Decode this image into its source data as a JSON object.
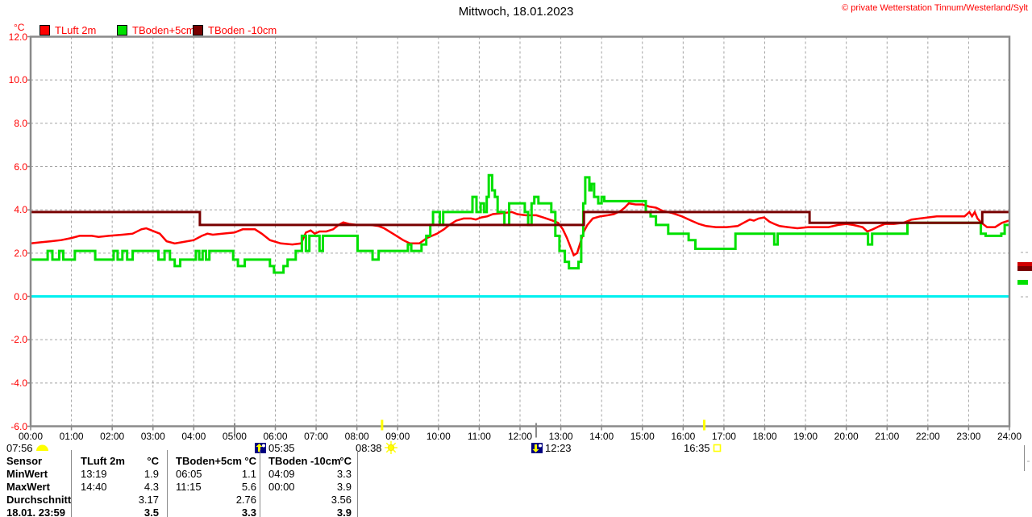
{
  "header": {
    "title": "Mittwoch, 18.01.2023",
    "copyright": "© private Wetterstation Tinnum/Westerland/Sylt"
  },
  "legend": {
    "unit": "°C",
    "items": [
      {
        "label": "TLuft 2m",
        "color": "#ff0000"
      },
      {
        "label": "TBoden+5cm",
        "color": "#00e000"
      },
      {
        "label": "TBoden -10cm",
        "color": "#780000"
      }
    ]
  },
  "chart_data": {
    "type": "line",
    "title": "Mittwoch, 18.01.2023",
    "xlabel": "",
    "ylabel": "°C",
    "ylim": [
      -6.0,
      12.0
    ],
    "ytick_step": 2.0,
    "x_minutes_range": [
      0,
      1440
    ],
    "grid": "dashed",
    "zero_line_color": "#00f0f0",
    "y_tick_labels": [
      "12.0",
      "10.0",
      "8.0",
      "6.0",
      "4.0",
      "2.0",
      "0.0",
      "-2.0",
      "-4.0",
      "-6.0"
    ],
    "x_tick_labels": [
      "00:00",
      "01:00",
      "02:00",
      "03:00",
      "04:00",
      "05:00",
      "06:00",
      "07:00",
      "08:00",
      "09:00",
      "10:00",
      "11:00",
      "12:00",
      "13:00",
      "14:00",
      "15:00",
      "16:00",
      "17:00",
      "18:00",
      "19:00",
      "20:00",
      "21:00",
      "22:00",
      "23:00",
      "24:00"
    ],
    "series": [
      {
        "name": "TLuft 2m",
        "color": "#ff0000",
        "width": 2.5,
        "mode": "linear",
        "points": [
          [
            0,
            2.45
          ],
          [
            15,
            2.5
          ],
          [
            30,
            2.55
          ],
          [
            45,
            2.6
          ],
          [
            60,
            2.7
          ],
          [
            72,
            2.8
          ],
          [
            90,
            2.8
          ],
          [
            100,
            2.75
          ],
          [
            115,
            2.8
          ],
          [
            135,
            2.85
          ],
          [
            150,
            2.9
          ],
          [
            163,
            3.1
          ],
          [
            170,
            3.15
          ],
          [
            178,
            3.05
          ],
          [
            190,
            2.9
          ],
          [
            200,
            2.55
          ],
          [
            212,
            2.45
          ],
          [
            222,
            2.5
          ],
          [
            240,
            2.6
          ],
          [
            252,
            2.8
          ],
          [
            260,
            2.9
          ],
          [
            268,
            2.85
          ],
          [
            282,
            2.9
          ],
          [
            300,
            2.95
          ],
          [
            312,
            3.1
          ],
          [
            330,
            3.1
          ],
          [
            340,
            2.9
          ],
          [
            352,
            2.6
          ],
          [
            368,
            2.45
          ],
          [
            385,
            2.4
          ],
          [
            398,
            2.45
          ],
          [
            405,
            2.95
          ],
          [
            412,
            3.05
          ],
          [
            418,
            2.9
          ],
          [
            425,
            3.0
          ],
          [
            435,
            3.0
          ],
          [
            445,
            3.1
          ],
          [
            453,
            3.3
          ],
          [
            460,
            3.42
          ],
          [
            468,
            3.35
          ],
          [
            480,
            3.3
          ],
          [
            500,
            3.3
          ],
          [
            512,
            3.25
          ],
          [
            520,
            3.15
          ],
          [
            533,
            2.9
          ],
          [
            548,
            2.6
          ],
          [
            558,
            2.45
          ],
          [
            572,
            2.45
          ],
          [
            583,
            2.7
          ],
          [
            598,
            2.9
          ],
          [
            608,
            3.1
          ],
          [
            616,
            3.3
          ],
          [
            626,
            3.5
          ],
          [
            637,
            3.6
          ],
          [
            648,
            3.6
          ],
          [
            655,
            3.55
          ],
          [
            663,
            3.65
          ],
          [
            672,
            3.7
          ],
          [
            680,
            3.8
          ],
          [
            694,
            3.85
          ],
          [
            708,
            3.9
          ],
          [
            716,
            3.8
          ],
          [
            728,
            3.75
          ],
          [
            744,
            3.75
          ],
          [
            754,
            3.65
          ],
          [
            768,
            3.5
          ],
          [
            776,
            3.4
          ],
          [
            783,
            3.1
          ],
          [
            789,
            2.7
          ],
          [
            794,
            2.3
          ],
          [
            799,
            1.9
          ],
          [
            804,
            2.0
          ],
          [
            809,
            2.5
          ],
          [
            814,
            3.0
          ],
          [
            819,
            3.3
          ],
          [
            827,
            3.6
          ],
          [
            838,
            3.7
          ],
          [
            849,
            3.75
          ],
          [
            858,
            3.8
          ],
          [
            868,
            3.95
          ],
          [
            874,
            4.1
          ],
          [
            880,
            4.3
          ],
          [
            890,
            4.25
          ],
          [
            900,
            4.25
          ],
          [
            910,
            4.15
          ],
          [
            920,
            4.1
          ],
          [
            930,
            3.95
          ],
          [
            944,
            3.85
          ],
          [
            958,
            3.7
          ],
          [
            972,
            3.5
          ],
          [
            983,
            3.35
          ],
          [
            994,
            3.25
          ],
          [
            1008,
            3.2
          ],
          [
            1024,
            3.2
          ],
          [
            1040,
            3.25
          ],
          [
            1052,
            3.45
          ],
          [
            1058,
            3.55
          ],
          [
            1064,
            3.5
          ],
          [
            1071,
            3.6
          ],
          [
            1079,
            3.65
          ],
          [
            1087,
            3.45
          ],
          [
            1094,
            3.35
          ],
          [
            1102,
            3.25
          ],
          [
            1114,
            3.2
          ],
          [
            1128,
            3.15
          ],
          [
            1144,
            3.2
          ],
          [
            1160,
            3.2
          ],
          [
            1174,
            3.2
          ],
          [
            1188,
            3.3
          ],
          [
            1200,
            3.35
          ],
          [
            1210,
            3.3
          ],
          [
            1224,
            3.2
          ],
          [
            1231,
            3.0
          ],
          [
            1239,
            3.1
          ],
          [
            1249,
            3.25
          ],
          [
            1257,
            3.35
          ],
          [
            1270,
            3.35
          ],
          [
            1284,
            3.4
          ],
          [
            1296,
            3.55
          ],
          [
            1308,
            3.6
          ],
          [
            1320,
            3.65
          ],
          [
            1333,
            3.7
          ],
          [
            1348,
            3.7
          ],
          [
            1362,
            3.7
          ],
          [
            1374,
            3.7
          ],
          [
            1381,
            3.9
          ],
          [
            1385,
            3.7
          ],
          [
            1389,
            3.9
          ],
          [
            1393,
            3.6
          ],
          [
            1399,
            3.4
          ],
          [
            1407,
            3.2
          ],
          [
            1419,
            3.2
          ],
          [
            1429,
            3.4
          ],
          [
            1439,
            3.5
          ]
        ]
      },
      {
        "name": "TBoden+5cm",
        "color": "#00e000",
        "width": 3,
        "mode": "step",
        "points": [
          [
            0,
            1.7
          ],
          [
            25,
            2.1
          ],
          [
            32,
            1.7
          ],
          [
            42,
            2.1
          ],
          [
            48,
            1.7
          ],
          [
            65,
            2.1
          ],
          [
            95,
            1.7
          ],
          [
            122,
            2.1
          ],
          [
            128,
            1.7
          ],
          [
            135,
            2.1
          ],
          [
            142,
            1.7
          ],
          [
            150,
            2.1
          ],
          [
            188,
            1.7
          ],
          [
            197,
            2.1
          ],
          [
            205,
            1.7
          ],
          [
            212,
            1.4
          ],
          [
            220,
            1.7
          ],
          [
            243,
            2.1
          ],
          [
            248,
            1.7
          ],
          [
            253,
            2.1
          ],
          [
            258,
            1.7
          ],
          [
            263,
            2.1
          ],
          [
            298,
            1.7
          ],
          [
            305,
            1.4
          ],
          [
            315,
            1.7
          ],
          [
            352,
            1.4
          ],
          [
            358,
            1.1
          ],
          [
            372,
            1.4
          ],
          [
            378,
            1.7
          ],
          [
            390,
            2.1
          ],
          [
            399,
            2.8
          ],
          [
            405,
            2.1
          ],
          [
            410,
            2.8
          ],
          [
            425,
            2.1
          ],
          [
            430,
            2.8
          ],
          [
            481,
            2.1
          ],
          [
            503,
            1.7
          ],
          [
            512,
            2.1
          ],
          [
            555,
            2.4
          ],
          [
            560,
            2.1
          ],
          [
            575,
            2.4
          ],
          [
            582,
            2.8
          ],
          [
            588,
            3.3
          ],
          [
            592,
            3.9
          ],
          [
            602,
            3.3
          ],
          [
            607,
            3.9
          ],
          [
            650,
            4.6
          ],
          [
            656,
            3.9
          ],
          [
            662,
            4.3
          ],
          [
            667,
            3.9
          ],
          [
            671,
            4.6
          ],
          [
            674,
            5.6
          ],
          [
            679,
            4.9
          ],
          [
            683,
            4.6
          ],
          [
            687,
            3.9
          ],
          [
            697,
            3.3
          ],
          [
            704,
            4.3
          ],
          [
            727,
            3.9
          ],
          [
            732,
            3.3
          ],
          [
            737,
            4.3
          ],
          [
            741,
            4.6
          ],
          [
            747,
            4.3
          ],
          [
            766,
            3.9
          ],
          [
            772,
            2.8
          ],
          [
            778,
            2.1
          ],
          [
            786,
            1.6
          ],
          [
            792,
            1.3
          ],
          [
            806,
            1.6
          ],
          [
            810,
            2.8
          ],
          [
            813,
            4.3
          ],
          [
            816,
            5.5
          ],
          [
            822,
            4.9
          ],
          [
            825,
            5.2
          ],
          [
            829,
            4.6
          ],
          [
            835,
            4.3
          ],
          [
            840,
            4.6
          ],
          [
            844,
            4.4
          ],
          [
            905,
            3.9
          ],
          [
            912,
            3.7
          ],
          [
            920,
            3.3
          ],
          [
            938,
            2.9
          ],
          [
            968,
            2.6
          ],
          [
            978,
            2.2
          ],
          [
            1037,
            2.9
          ],
          [
            1094,
            2.4
          ],
          [
            1099,
            2.9
          ],
          [
            1232,
            2.4
          ],
          [
            1238,
            2.9
          ],
          [
            1290,
            3.4
          ],
          [
            1398,
            2.9
          ],
          [
            1405,
            2.8
          ],
          [
            1428,
            2.9
          ],
          [
            1433,
            3.3
          ],
          [
            1439,
            3.3
          ]
        ]
      },
      {
        "name": "TBoden -10cm",
        "color": "#780000",
        "width": 3,
        "mode": "step",
        "points": [
          [
            0,
            3.9
          ],
          [
            249,
            3.3
          ],
          [
            814,
            3.9
          ],
          [
            1146,
            3.4
          ],
          [
            1400,
            3.9
          ],
          [
            1439,
            3.9
          ]
        ]
      }
    ]
  },
  "astro_markers": {
    "dawn_time": "07:56",
    "moon_up_time": "05:35",
    "sunrise_time": "08:38",
    "moon_down_time": "12:23",
    "sunset_time": "16:35"
  },
  "table": {
    "row_headers": [
      "Sensor",
      "MinWert",
      "MaxWert",
      "Durchschnitt",
      "18.01. 23:59"
    ],
    "columns": [
      {
        "name": "TLuft 2m",
        "unit": "°C",
        "min_time": "13:19",
        "min": "1.9",
        "max_time": "14:40",
        "max": "4.3",
        "avg": "3.17",
        "last": "3.5"
      },
      {
        "name": "TBoden+5cm",
        "unit": "°C",
        "min_time": "06:05",
        "min": "1.1",
        "max_time": "11:15",
        "max": "5.6",
        "avg": "2.76",
        "last": "3.3"
      },
      {
        "name": "TBoden -10cm",
        "unit": "°C",
        "min_time": "04:09",
        "min": "3.3",
        "max_time": "00:00",
        "max": "3.9",
        "avg": "3.56",
        "last": "3.9"
      }
    ]
  }
}
